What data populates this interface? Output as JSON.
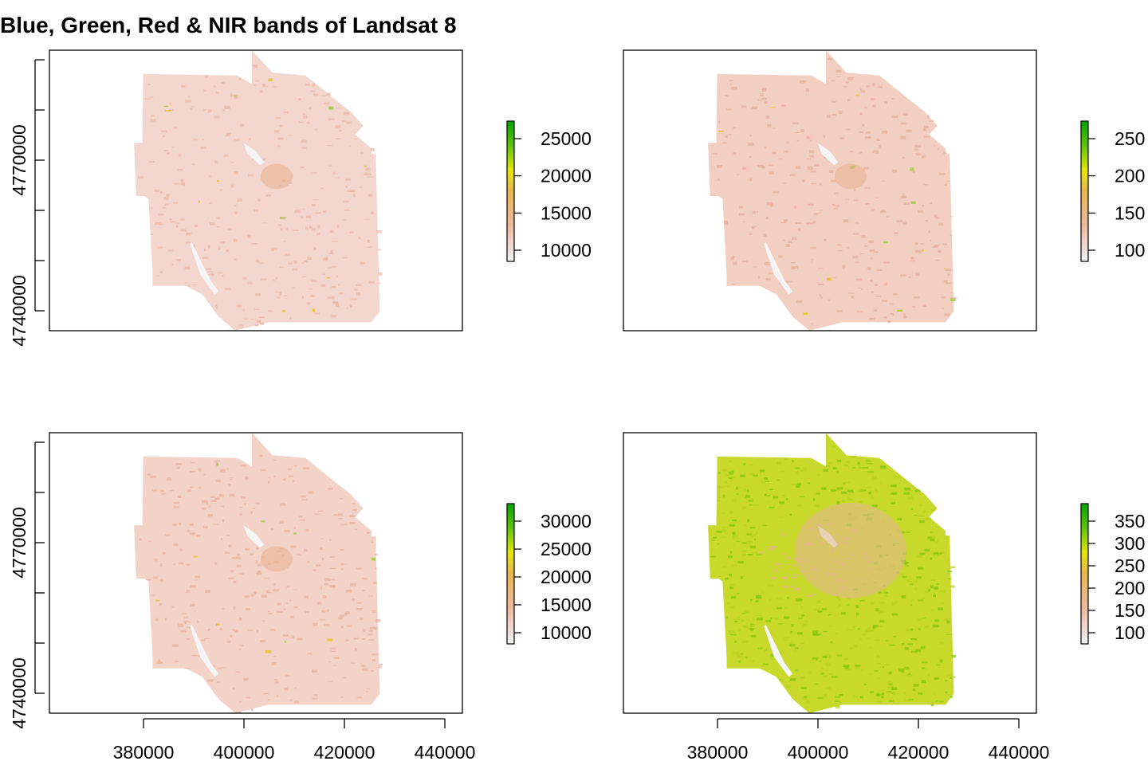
{
  "title": "Blue, Green, Red & NIR bands of Landsat 8",
  "x_axis": {
    "ticks": [
      "380000",
      "400000",
      "420000",
      "440000"
    ]
  },
  "y_axis": {
    "ticks": [
      "4740000",
      "4770000"
    ]
  },
  "colors": {
    "low": "#f2f2f2",
    "pink": "#eeb99f",
    "orange": "#eab64e",
    "yellow": "#e6e600",
    "green": "#63c600",
    "high": "#00a600"
  },
  "panels": [
    {
      "name": "blue",
      "legend_ticks": [
        "25000",
        "20000",
        "15000",
        "10000"
      ],
      "fill": "#f3d6cd",
      "speck": "#e8b8a6"
    },
    {
      "name": "green",
      "legend_ticks": [
        "250",
        "200",
        "150",
        "100"
      ],
      "fill": "#f2cfc1",
      "speck": "#e6ae98"
    },
    {
      "name": "red",
      "legend_ticks": [
        "30000",
        "25000",
        "20000",
        "15000",
        "10000"
      ],
      "fill": "#f3d3c7",
      "speck": "#e7b09c"
    },
    {
      "name": "nir",
      "legend_ticks": [
        "350",
        "300",
        "250",
        "200",
        "150",
        "100"
      ],
      "fill": "#c9d92b",
      "speck": "#8ec81a"
    }
  ]
}
